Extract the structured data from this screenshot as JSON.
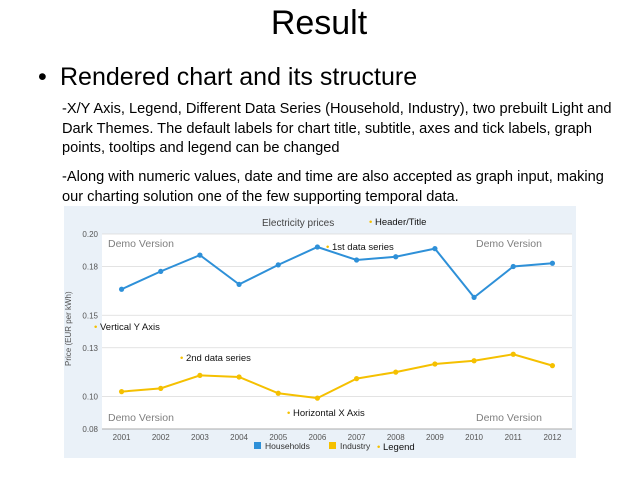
{
  "slide": {
    "title": "Result",
    "bullet": "Rendered chart and its structure",
    "paragraph1": "-X/Y Axis, Legend, Different Data Series (Household, Industry), two prebuilt Light and Dark Themes. The default labels for chart title, subtitle, axes and tick labels, graph points, tooltips and legend can be changed",
    "paragraph2": "-Along with numeric values, date and time are also accepted as graph input, making our charting solution one of the few supporting temporal data."
  },
  "chart_data": {
    "type": "line",
    "title": "Electricity prices",
    "ylabel": "Price (EUR per kWh)",
    "xlabel": "",
    "x": [
      "2001",
      "2002",
      "2003",
      "2004",
      "2005",
      "2006",
      "2007",
      "2008",
      "2009",
      "2010",
      "2011",
      "2012"
    ],
    "ylim": [
      0.08,
      0.2
    ],
    "yticks": [
      "0.08",
      "0.10",
      "0.13",
      "0.15",
      "0.18",
      "0.20"
    ],
    "ytick_values": [
      0.08,
      0.1,
      0.13,
      0.15,
      0.18,
      0.2
    ],
    "grid": true,
    "legend_position": "bottom",
    "series": [
      {
        "name": "Households",
        "color": "#2e90d8",
        "values": [
          0.166,
          0.177,
          0.187,
          0.169,
          0.181,
          0.192,
          0.184,
          0.186,
          0.191,
          0.161,
          0.18,
          0.182
        ]
      },
      {
        "name": "Industry",
        "color": "#f5c000",
        "values": [
          0.103,
          0.105,
          0.113,
          0.112,
          0.102,
          0.099,
          0.111,
          0.115,
          0.12,
          0.122,
          0.126,
          0.119
        ]
      }
    ],
    "watermarks": [
      "Demo Version",
      "Demo Version",
      "Demo Version",
      "Demo Version"
    ],
    "annotations": {
      "header": "Header/Title",
      "series1": "1st data series",
      "yaxis": "Vertical Y Axis",
      "series2": "2nd data series",
      "xaxis": "Horizontal X Axis",
      "legend": "Legend"
    },
    "annotation_color": "#f5c000"
  }
}
